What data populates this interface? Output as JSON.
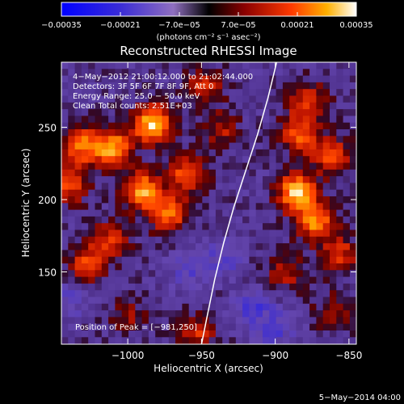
{
  "chart_data": {
    "type": "heatmap",
    "title": "Reconstructed RHESSI Image",
    "xlabel": "Heliocentric X (arcsec)",
    "ylabel": "Heliocentric Y (arcsec)",
    "xlim": [
      -1045,
      -845
    ],
    "ylim": [
      100,
      295
    ],
    "x_ticks": [
      -1000,
      -950,
      -900,
      -850
    ],
    "x_tick_labels": [
      "−1000",
      "−950",
      "−900",
      "−850"
    ],
    "y_ticks": [
      150,
      200,
      250
    ],
    "y_tick_labels": [
      "150",
      "200",
      "250"
    ],
    "colorbar": {
      "range": [
        -0.00035,
        0.00035
      ],
      "ticks": [
        -0.00035,
        -0.00021,
        -7e-05,
        7e-05,
        0.00021,
        0.00035
      ],
      "tick_labels": [
        "−0.00035",
        "−0.00021",
        "−7.0e−05",
        "7.0e−05",
        "0.00021",
        "0.00035"
      ],
      "units_label": "(photons cm⁻² s⁻¹ asec⁻²)"
    },
    "annotations": [
      "4−May−2012 21:00:12.000 to 21:02:44.000",
      "Detectors: 3F 5F 6F 7F 8F 9F, Att 0",
      "Energy Range: 25.0 − 50.0 keV",
      "Clean     Total counts: 2.51E+03",
      "Position of Peak = [−981,250]"
    ],
    "limb_curve": [
      [
        -899,
        295
      ],
      [
        -905,
        270
      ],
      [
        -912,
        245
      ],
      [
        -920,
        220
      ],
      [
        -928,
        195
      ],
      [
        -935,
        170
      ],
      [
        -941,
        145
      ],
      [
        -947,
        115
      ],
      [
        -950,
        100
      ]
    ],
    "hot_spots": [
      {
        "x": -1032,
        "y": 237,
        "value": 0.00025
      },
      {
        "x": -1010,
        "y": 236,
        "value": 0.0003
      },
      {
        "x": -983,
        "y": 252,
        "value": 0.00035
      },
      {
        "x": -990,
        "y": 206,
        "value": 0.0003
      },
      {
        "x": -972,
        "y": 190,
        "value": 0.00024
      },
      {
        "x": -960,
        "y": 218,
        "value": 0.00022
      },
      {
        "x": -1012,
        "y": 172,
        "value": 0.00018
      },
      {
        "x": -1040,
        "y": 210,
        "value": 0.0002
      },
      {
        "x": -1028,
        "y": 155,
        "value": 0.0002
      },
      {
        "x": -948,
        "y": 278,
        "value": 0.00016
      },
      {
        "x": -937,
        "y": 248,
        "value": 0.00013
      },
      {
        "x": -885,
        "y": 205,
        "value": 0.00034
      },
      {
        "x": -883,
        "y": 245,
        "value": 0.00022
      },
      {
        "x": -873,
        "y": 185,
        "value": 0.00027
      },
      {
        "x": -862,
        "y": 230,
        "value": 0.0002
      },
      {
        "x": -878,
        "y": 268,
        "value": 0.00019
      },
      {
        "x": -857,
        "y": 162,
        "value": 0.00018
      },
      {
        "x": -893,
        "y": 150,
        "value": 0.00014
      },
      {
        "x": -860,
        "y": 122,
        "value": 0.00012
      },
      {
        "x": -953,
        "y": 108,
        "value": 0.00016
      },
      {
        "x": -1000,
        "y": 120,
        "value": 0.0001
      }
    ],
    "cold_spots": [
      {
        "x": -915,
        "y": 125,
        "value": -0.00012
      },
      {
        "x": -935,
        "y": 160,
        "value": -0.0001
      },
      {
        "x": -900,
        "y": 110,
        "value": -0.0001
      },
      {
        "x": -1040,
        "y": 130,
        "value": -8e-05
      },
      {
        "x": -960,
        "y": 150,
        "value": -8e-05
      }
    ]
  },
  "footer": {
    "date": "5−May−2014 04:00"
  }
}
